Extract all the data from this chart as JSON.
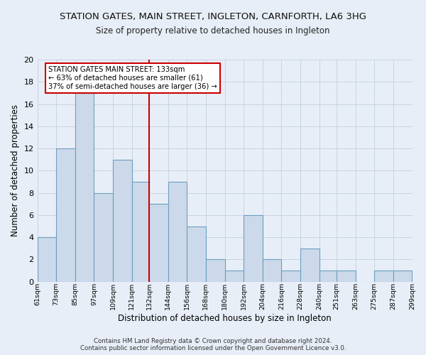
{
  "title": "STATION GATES, MAIN STREET, INGLETON, CARNFORTH, LA6 3HG",
  "subtitle": "Size of property relative to detached houses in Ingleton",
  "xlabel": "Distribution of detached houses by size in Ingleton",
  "ylabel": "Number of detached properties",
  "bar_edges": [
    61,
    73,
    85,
    97,
    109,
    121,
    132,
    144,
    156,
    168,
    180,
    192,
    204,
    216,
    228,
    240,
    251,
    263,
    275,
    287,
    299
  ],
  "bar_heights": [
    4,
    12,
    17,
    8,
    11,
    9,
    7,
    9,
    5,
    2,
    1,
    6,
    2,
    1,
    3,
    1,
    1,
    0,
    1,
    1
  ],
  "bar_color": "#ccd9ea",
  "bar_edge_color": "#6a9fc0",
  "grid_color": "#c8d4e3",
  "ref_line_x": 132,
  "ref_line_color": "#cc0000",
  "annotation_line1": "STATION GATES MAIN STREET: 133sqm",
  "annotation_line2": "← 63% of detached houses are smaller (61)",
  "annotation_line3": "37% of semi-detached houses are larger (36) →",
  "annotation_box_facecolor": "#ffffff",
  "annotation_box_edgecolor": "#cc0000",
  "ylim": [
    0,
    20
  ],
  "yticks": [
    0,
    2,
    4,
    6,
    8,
    10,
    12,
    14,
    16,
    18,
    20
  ],
  "tick_labels": [
    "61sqm",
    "73sqm",
    "85sqm",
    "97sqm",
    "109sqm",
    "121sqm",
    "132sqm",
    "144sqm",
    "156sqm",
    "168sqm",
    "180sqm",
    "192sqm",
    "204sqm",
    "216sqm",
    "228sqm",
    "240sqm",
    "251sqm",
    "263sqm",
    "275sqm",
    "287sqm",
    "299sqm"
  ],
  "footer_line1": "Contains HM Land Registry data © Crown copyright and database right 2024.",
  "footer_line2": "Contains public sector information licensed under the Open Government Licence v3.0.",
  "bg_color": "#e8eef7",
  "plot_bg_color": "#e8eef7",
  "title_fontsize": 9.5,
  "subtitle_fontsize": 8.5,
  "ylabel_fontsize": 8.5,
  "xlabel_fontsize": 8.5
}
